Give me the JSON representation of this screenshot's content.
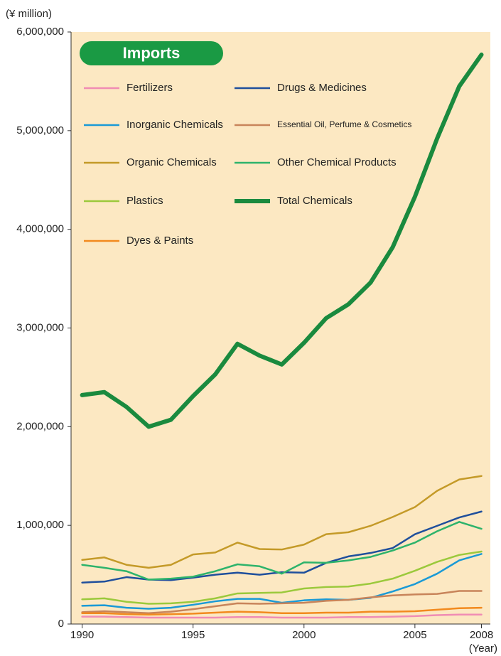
{
  "chart_data": {
    "type": "line",
    "y_unit_label": "(¥ million)",
    "x_label": "(Year)",
    "legend_title": "Imports",
    "x": [
      1990,
      1991,
      1992,
      1993,
      1994,
      1995,
      1996,
      1997,
      1998,
      1999,
      2000,
      2001,
      2002,
      2003,
      2004,
      2005,
      2006,
      2007,
      2008
    ],
    "xlim": [
      1989.5,
      2008.4
    ],
    "xticks": [
      1990,
      1995,
      2000,
      2005,
      2008
    ],
    "ylim": [
      0,
      6000000
    ],
    "yticks": [
      0,
      {
        "value": 1000000,
        "label": "1,000,000"
      },
      {
        "value": 2000000,
        "label": "2,000,000"
      },
      {
        "value": 3000000,
        "label": "3,000,000"
      },
      {
        "value": 4000000,
        "label": "4,000,000"
      },
      {
        "value": 5000000,
        "label": "5,000,000"
      },
      {
        "value": 6000000,
        "label": "6,000,000"
      }
    ],
    "background": "#fce8c2",
    "series": [
      {
        "name": "Fertilizers",
        "color": "#f08cb4",
        "line_width": 2.5,
        "values": [
          75000,
          75000,
          70000,
          65000,
          65000,
          65000,
          65000,
          70000,
          70000,
          65000,
          65000,
          65000,
          70000,
          70000,
          75000,
          80000,
          90000,
          95000,
          95000
        ]
      },
      {
        "name": "Drugs & Medicines",
        "color": "#1f4f9c",
        "line_width": 2.5,
        "values": [
          420000,
          430000,
          475000,
          450000,
          445000,
          470000,
          500000,
          520000,
          500000,
          525000,
          520000,
          620000,
          685000,
          720000,
          770000,
          910000,
          995000,
          1080000,
          1140000
        ]
      },
      {
        "name": "Inorganic Chemicals",
        "color": "#1a9ad6",
        "line_width": 2.5,
        "values": [
          185000,
          190000,
          165000,
          155000,
          165000,
          195000,
          230000,
          255000,
          255000,
          215000,
          240000,
          250000,
          245000,
          265000,
          330000,
          405000,
          510000,
          645000,
          710000
        ]
      },
      {
        "name": "Essential Oil, Perfume & Cosmetics",
        "color": "#c8845a",
        "line_width": 2.5,
        "values": [
          120000,
          130000,
          120000,
          110000,
          125000,
          150000,
          180000,
          210000,
          205000,
          210000,
          215000,
          235000,
          245000,
          270000,
          290000,
          300000,
          305000,
          335000,
          335000
        ]
      },
      {
        "name": "Organic Chemicals",
        "color": "#c49a28",
        "line_width": 2.5,
        "values": [
          650000,
          675000,
          600000,
          570000,
          600000,
          705000,
          725000,
          825000,
          760000,
          755000,
          805000,
          910000,
          930000,
          995000,
          1085000,
          1185000,
          1350000,
          1465000,
          1500000
        ]
      },
      {
        "name": "Other Chemical Products",
        "color": "#2db36b",
        "line_width": 2.5,
        "values": [
          600000,
          570000,
          535000,
          450000,
          460000,
          480000,
          535000,
          605000,
          585000,
          510000,
          625000,
          620000,
          645000,
          680000,
          745000,
          825000,
          940000,
          1035000,
          965000
        ]
      },
      {
        "name": "Plastics",
        "color": "#9bc93c",
        "line_width": 2.5,
        "values": [
          250000,
          260000,
          225000,
          205000,
          210000,
          225000,
          260000,
          310000,
          315000,
          320000,
          360000,
          375000,
          380000,
          410000,
          460000,
          540000,
          630000,
          700000,
          735000
        ]
      },
      {
        "name": "Total Chemicals",
        "color": "#1a8a3e",
        "line_width": 6,
        "values": [
          2320000,
          2350000,
          2200000,
          2000000,
          2070000,
          2310000,
          2530000,
          2840000,
          2720000,
          2630000,
          2850000,
          3100000,
          3240000,
          3460000,
          3820000,
          4330000,
          4920000,
          5450000,
          5770000
        ]
      },
      {
        "name": "Dyes & Paints",
        "color": "#f28a1e",
        "line_width": 2.5,
        "values": [
          110000,
          110000,
          100000,
          95000,
          100000,
          105000,
          115000,
          125000,
          120000,
          110000,
          110000,
          115000,
          115000,
          125000,
          125000,
          130000,
          145000,
          160000,
          165000
        ]
      }
    ]
  }
}
